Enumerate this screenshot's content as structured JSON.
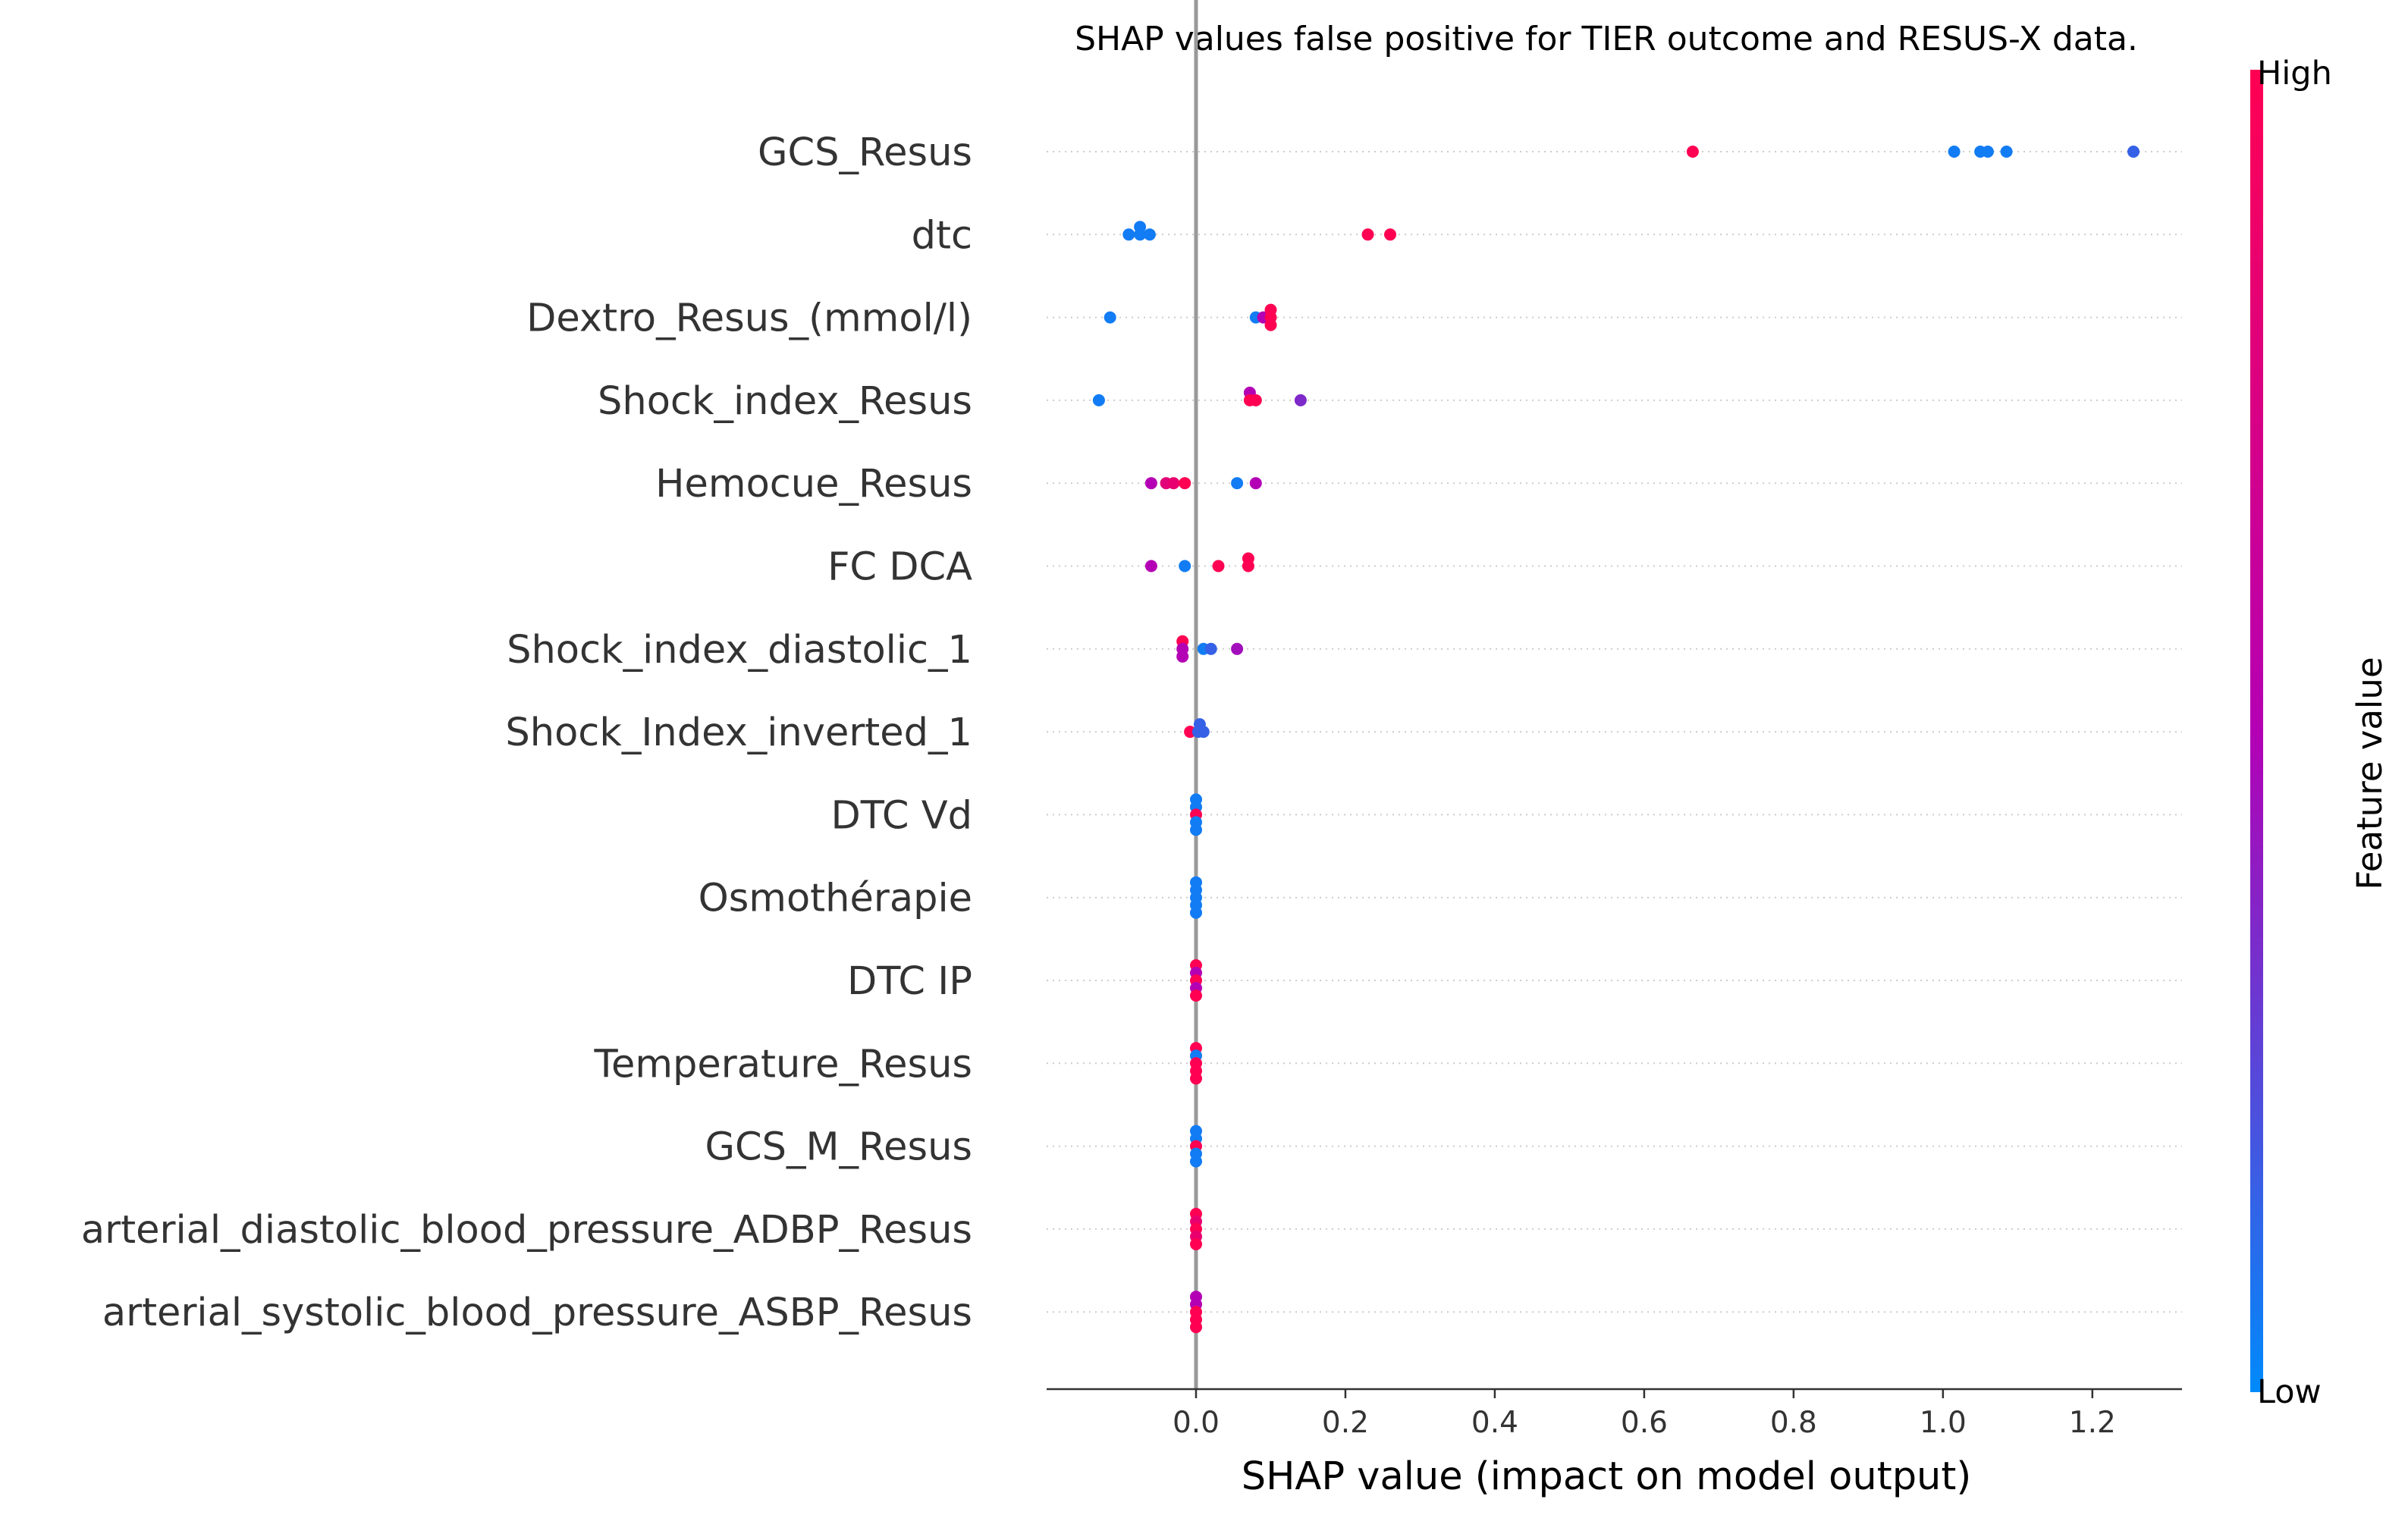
{
  "chart_data": {
    "type": "scatter",
    "title": "SHAP values false positive for TIER outcome and RESUS-X data.",
    "xlabel": "SHAP value (impact on model output)",
    "ylabel": "",
    "xlim": [
      -0.2,
      1.32
    ],
    "xticks": [
      0.0,
      0.2,
      0.4,
      0.6,
      0.8,
      1.0,
      1.2
    ],
    "xtick_labels": [
      "0.0",
      "0.2",
      "0.4",
      "0.6",
      "0.8",
      "1.0",
      "1.2"
    ],
    "grid": false,
    "colorbar": {
      "label": "Feature value",
      "high_label": "High",
      "low_label": "Low",
      "high_color": "#ff0052",
      "mid_color": "#b400b4",
      "low_color": "#008afb"
    },
    "colors": {
      "axis": "#333333",
      "zero_line": "#999999",
      "row_guide": "#cccccc"
    },
    "features": [
      {
        "name": "GCS_Resus",
        "points": [
          {
            "v": 0.665,
            "c": 1.0,
            "j": 0
          },
          {
            "v": 1.015,
            "c": 0.05,
            "j": 0
          },
          {
            "v": 1.05,
            "c": 0.05,
            "j": 0
          },
          {
            "v": 1.06,
            "c": 0.05,
            "j": 0
          },
          {
            "v": 1.085,
            "c": 0.05,
            "j": 0
          },
          {
            "v": 1.255,
            "c": 0.15,
            "j": 0
          }
        ]
      },
      {
        "name": "dtc",
        "points": [
          {
            "v": -0.075,
            "c": 0.05,
            "j": -1
          },
          {
            "v": -0.09,
            "c": 0.05,
            "j": 0
          },
          {
            "v": -0.075,
            "c": 0.05,
            "j": 0
          },
          {
            "v": -0.062,
            "c": 0.05,
            "j": 0
          },
          {
            "v": 0.23,
            "c": 1.0,
            "j": 0
          },
          {
            "v": 0.26,
            "c": 1.0,
            "j": 0
          }
        ]
      },
      {
        "name": "Dextro_Resus_(mmol/l)",
        "points": [
          {
            "v": -0.115,
            "c": 0.05,
            "j": 0
          },
          {
            "v": 0.08,
            "c": 0.05,
            "j": 0
          },
          {
            "v": 0.09,
            "c": 0.5,
            "j": 0
          },
          {
            "v": 0.1,
            "c": 1.0,
            "j": -1
          },
          {
            "v": 0.1,
            "c": 1.0,
            "j": 0
          },
          {
            "v": 0.1,
            "c": 1.0,
            "j": 1
          }
        ]
      },
      {
        "name": "Shock_index_Resus",
        "points": [
          {
            "v": -0.13,
            "c": 0.05,
            "j": 0
          },
          {
            "v": 0.072,
            "c": 0.5,
            "j": -1
          },
          {
            "v": 0.072,
            "c": 1.0,
            "j": 0
          },
          {
            "v": 0.08,
            "c": 1.0,
            "j": 0
          },
          {
            "v": 0.14,
            "c": 0.35,
            "j": 0
          }
        ]
      },
      {
        "name": "Hemocue_Resus",
        "points": [
          {
            "v": -0.06,
            "c": 0.5,
            "j": 0
          },
          {
            "v": -0.04,
            "c": 0.8,
            "j": 0
          },
          {
            "v": -0.03,
            "c": 0.85,
            "j": 0
          },
          {
            "v": -0.015,
            "c": 1.0,
            "j": 0
          },
          {
            "v": 0.055,
            "c": 0.05,
            "j": 0
          },
          {
            "v": 0.08,
            "c": 0.5,
            "j": 0
          }
        ]
      },
      {
        "name": "FC  DCA",
        "points": [
          {
            "v": -0.06,
            "c": 0.5,
            "j": 0
          },
          {
            "v": -0.015,
            "c": 0.05,
            "j": 0
          },
          {
            "v": 0.03,
            "c": 1.0,
            "j": 0
          },
          {
            "v": 0.07,
            "c": 1.0,
            "j": -1
          },
          {
            "v": 0.07,
            "c": 1.0,
            "j": 0
          }
        ]
      },
      {
        "name": "Shock_index_diastolic_1",
        "points": [
          {
            "v": -0.018,
            "c": 1.0,
            "j": -1
          },
          {
            "v": -0.018,
            "c": 0.5,
            "j": 0
          },
          {
            "v": -0.018,
            "c": 0.5,
            "j": 1
          },
          {
            "v": 0.01,
            "c": 0.05,
            "j": 0
          },
          {
            "v": 0.02,
            "c": 0.15,
            "j": 0
          },
          {
            "v": 0.055,
            "c": 0.45,
            "j": 0
          }
        ]
      },
      {
        "name": "Shock_Index_inverted_1",
        "points": [
          {
            "v": 0.005,
            "c": 0.15,
            "j": -1
          },
          {
            "v": -0.008,
            "c": 1.0,
            "j": 0
          },
          {
            "v": 0.003,
            "c": 0.15,
            "j": 0
          },
          {
            "v": 0.01,
            "c": 0.15,
            "j": 0
          }
        ]
      },
      {
        "name": "DTC Vd",
        "points": [
          {
            "v": 0.0,
            "c": 0.05,
            "j": -2
          },
          {
            "v": 0.0,
            "c": 0.05,
            "j": -1
          },
          {
            "v": 0.0,
            "c": 1.0,
            "j": 0
          },
          {
            "v": 0.0,
            "c": 0.05,
            "j": 1
          },
          {
            "v": 0.0,
            "c": 0.05,
            "j": 2
          }
        ]
      },
      {
        "name": "Osmothérapie",
        "points": [
          {
            "v": 0.0,
            "c": 0.05,
            "j": -2
          },
          {
            "v": 0.0,
            "c": 0.05,
            "j": -1
          },
          {
            "v": 0.0,
            "c": 0.05,
            "j": 0
          },
          {
            "v": 0.0,
            "c": 0.05,
            "j": 1
          },
          {
            "v": 0.0,
            "c": 0.05,
            "j": 2
          }
        ]
      },
      {
        "name": "DTC IP",
        "points": [
          {
            "v": 0.0,
            "c": 1.0,
            "j": -2
          },
          {
            "v": 0.0,
            "c": 0.5,
            "j": -1
          },
          {
            "v": 0.0,
            "c": 1.0,
            "j": 0
          },
          {
            "v": 0.0,
            "c": 0.5,
            "j": 1
          },
          {
            "v": 0.0,
            "c": 1.0,
            "j": 2
          }
        ]
      },
      {
        "name": "Temperature_Resus",
        "points": [
          {
            "v": 0.0,
            "c": 1.0,
            "j": -2
          },
          {
            "v": 0.0,
            "c": 0.05,
            "j": -1
          },
          {
            "v": 0.0,
            "c": 1.0,
            "j": 0
          },
          {
            "v": 0.0,
            "c": 1.0,
            "j": 1
          },
          {
            "v": 0.0,
            "c": 1.0,
            "j": 2
          }
        ]
      },
      {
        "name": "GCS_M_Resus",
        "points": [
          {
            "v": 0.0,
            "c": 0.05,
            "j": -2
          },
          {
            "v": 0.0,
            "c": 0.05,
            "j": -1
          },
          {
            "v": 0.0,
            "c": 1.0,
            "j": 0
          },
          {
            "v": 0.0,
            "c": 0.05,
            "j": 1
          },
          {
            "v": 0.0,
            "c": 0.05,
            "j": 2
          }
        ]
      },
      {
        "name": "arterial_diastolic_blood_pressure_ADBP_Resus",
        "points": [
          {
            "v": 0.0,
            "c": 1.0,
            "j": -2
          },
          {
            "v": 0.0,
            "c": 0.85,
            "j": -1
          },
          {
            "v": 0.0,
            "c": 1.0,
            "j": 0
          },
          {
            "v": 0.0,
            "c": 0.85,
            "j": 1
          },
          {
            "v": 0.0,
            "c": 1.0,
            "j": 2
          }
        ]
      },
      {
        "name": "arterial_systolic_blood_pressure_ASBP_Resus",
        "points": [
          {
            "v": 0.0,
            "c": 0.5,
            "j": -2
          },
          {
            "v": 0.0,
            "c": 0.5,
            "j": -1
          },
          {
            "v": 0.0,
            "c": 1.0,
            "j": 0
          },
          {
            "v": 0.0,
            "c": 1.0,
            "j": 1
          },
          {
            "v": 0.0,
            "c": 1.0,
            "j": 2
          }
        ]
      }
    ]
  }
}
